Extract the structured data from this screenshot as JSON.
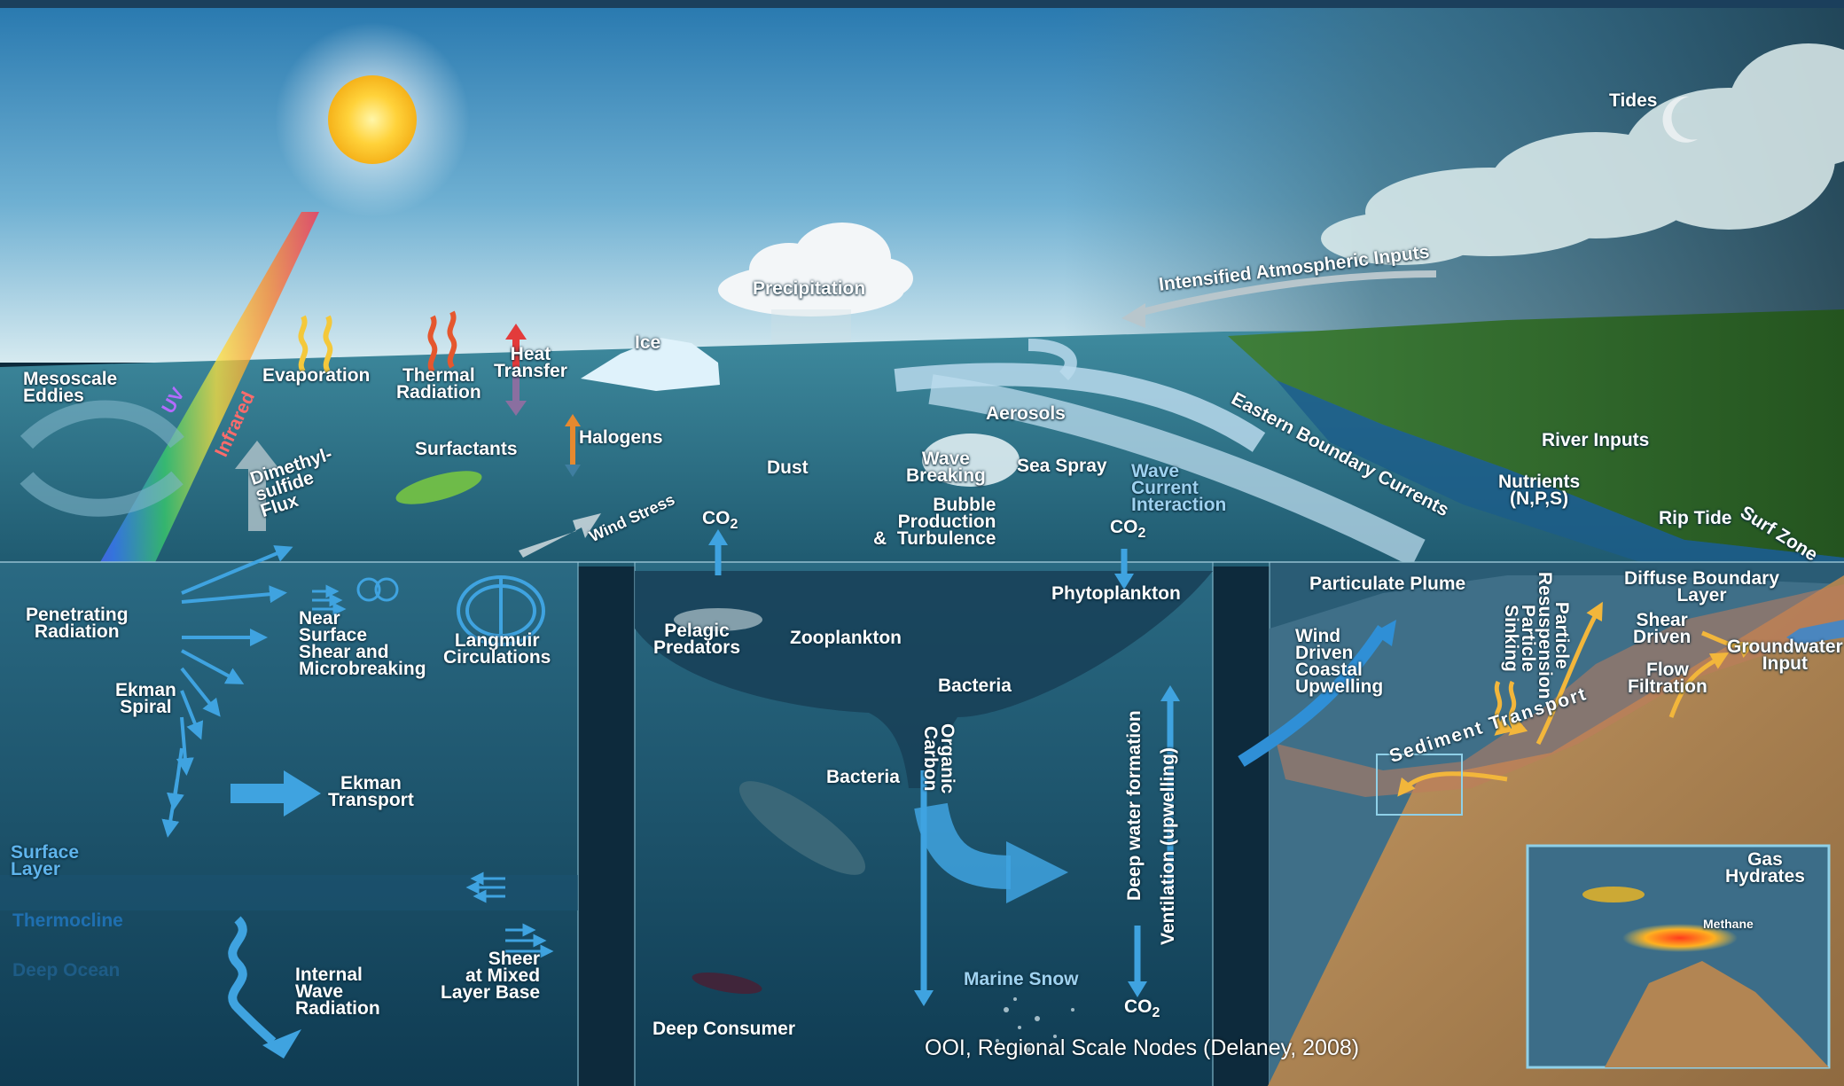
{
  "colors": {
    "sky_top": "#2c7fb4",
    "sky_horizon": "#cfe6ef",
    "ocean_surface": "#2a6f86",
    "deep_ocean": "#0f3f57",
    "land": "#2f6b2c",
    "sediment": "#b4895a",
    "arrow_blue": "#3f9fd8",
    "accent_yellow": "#f2b63b"
  },
  "surface": {
    "tides": "Tides",
    "intensified": "Intensified Atmospheric Inputs",
    "precipitation": "Precipitation",
    "ice": "Ice",
    "mesoscale": "Mesoscale\nEddies",
    "uv": "UV",
    "infrared": "Infrared",
    "evaporation": "Evaporation",
    "thermal": "Thermal\nRadiation",
    "heat": "Heat\nTransfer",
    "dimethyl": "Dimethyl-\nsulfide\nFlux",
    "surfactants": "Surfactants",
    "halogens": "Halogens",
    "wind_stress": "Wind Stress",
    "dust": "Dust",
    "aerosols": "Aerosols",
    "wave_breaking": "Wave\nBreaking",
    "sea_spray": "Sea Spray",
    "bubble": "Bubble\nProduction\n&  Turbulence",
    "wave_current": "Wave\nCurrent\nInteraction",
    "eastern": "Eastern Boundary Currents",
    "river": "River Inputs",
    "nutrients": "Nutrients\n(N,P,S)",
    "rip_tide": "Rip Tide",
    "surf_zone": "Surf Zone",
    "co2_a": "CO",
    "co2_b": "CO",
    "co2_sub": "2"
  },
  "left_panel": {
    "penetrating": "Penetrating\nRadiation",
    "near_surface": "Near\nSurface\nShear and\nMicrobreaking",
    "langmuir": "Langmuir\nCirculations",
    "ekman_spiral": "Ekman\nSpiral",
    "ekman_transport": "Ekman\nTransport",
    "surface_layer": "Surface\nLayer",
    "thermocline": "Thermocline",
    "deep_ocean": "Deep Ocean",
    "internal_wave": "Internal\nWave\nRadiation",
    "sheer": "Sheer\nat Mixed\nLayer Base"
  },
  "middle_panel": {
    "phytoplankton": "Phytoplankton",
    "pelagic": "Pelagic\nPredators",
    "zooplankton": "Zooplankton",
    "bacteria_top": "Bacteria",
    "organic_carbon": "Organic\nCarbon",
    "bacteria_mid": "Bacteria",
    "deep_water": "Deep water formation",
    "ventilation": "Ventilation (upwelling)",
    "marine_snow": "Marine Snow",
    "deep_consumer": "Deep Consumer",
    "co2_bottom": "CO",
    "co2_sub": "2"
  },
  "right_panel": {
    "particulate": "Particulate Plume",
    "resuspension": "Particle\nResuspension",
    "sinking": "Particle\nSinking",
    "diffuse": "Diffuse Boundary\nLayer",
    "shear_driven": "Shear\nDriven",
    "groundwater": "Groundwater\nInput",
    "flow_filtration": "Flow\nFiltration",
    "wind_driven": "Wind\nDriven\nCoastal\nUpwelling",
    "sediment": "Sediment Transport",
    "gas_hydrates": "Gas\nHydrates",
    "methane": "Methane"
  },
  "credit": "OOI, Regional Scale Nodes (Delaney, 2008)"
}
